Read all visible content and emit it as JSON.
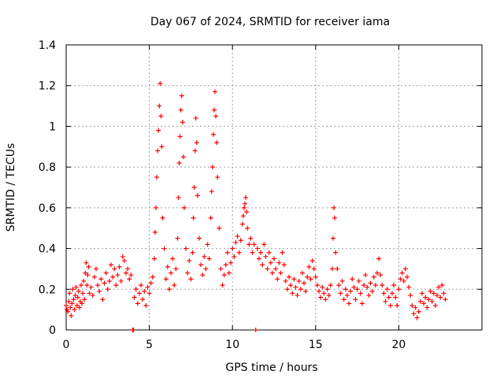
{
  "chart_data": {
    "type": "scatter",
    "title": "Day 067 of 2024, SRMTID for receiver iama",
    "xlabel": "GPS time / hours",
    "ylabel": "SRMTID / TECUs",
    "xlim": [
      0,
      25
    ],
    "ylim": [
      0,
      1.4
    ],
    "x_ticks": [
      0,
      5,
      10,
      15,
      20
    ],
    "y_ticks": [
      0,
      0.2,
      0.4,
      0.6,
      0.8,
      1,
      1.2,
      1.4
    ],
    "x_tick_labels": [
      "0",
      "5",
      "10",
      "15",
      "20"
    ],
    "y_tick_labels": [
      "0",
      "0.2",
      "0.4",
      "0.6",
      "0.8",
      "1",
      "1.2",
      "1.4"
    ],
    "grid": true,
    "marker": "+",
    "color": "#ff0000",
    "series": [
      {
        "name": "SRMTID",
        "points": [
          [
            0.0,
            0.12
          ],
          [
            0.05,
            0.1
          ],
          [
            0.1,
            0.09
          ],
          [
            0.15,
            0.14
          ],
          [
            0.2,
            0.18
          ],
          [
            0.25,
            0.11
          ],
          [
            0.3,
            0.07
          ],
          [
            0.35,
            0.13
          ],
          [
            0.4,
            0.2
          ],
          [
            0.45,
            0.15
          ],
          [
            0.5,
            0.1
          ],
          [
            0.55,
            0.17
          ],
          [
            0.6,
            0.21
          ],
          [
            0.65,
            0.12
          ],
          [
            0.7,
            0.16
          ],
          [
            0.75,
            0.19
          ],
          [
            0.8,
            0.11
          ],
          [
            0.85,
            0.14
          ],
          [
            0.9,
            0.22
          ],
          [
            0.95,
            0.13
          ],
          [
            1.0,
            0.18
          ],
          [
            1.05,
            0.24
          ],
          [
            1.1,
            0.15
          ],
          [
            1.15,
            0.28
          ],
          [
            1.2,
            0.33
          ],
          [
            1.25,
            0.22
          ],
          [
            1.3,
            0.27
          ],
          [
            1.35,
            0.31
          ],
          [
            1.4,
            0.18
          ],
          [
            1.5,
            0.21
          ],
          [
            1.6,
            0.17
          ],
          [
            1.7,
            0.26
          ],
          [
            1.8,
            0.3
          ],
          [
            1.9,
            0.22
          ],
          [
            2.0,
            0.19
          ],
          [
            2.1,
            0.25
          ],
          [
            2.2,
            0.15
          ],
          [
            2.3,
            0.23
          ],
          [
            2.4,
            0.28
          ],
          [
            2.5,
            0.2
          ],
          [
            2.6,
            0.24
          ],
          [
            2.7,
            0.32
          ],
          [
            2.8,
            0.26
          ],
          [
            2.9,
            0.3
          ],
          [
            3.0,
            0.22
          ],
          [
            3.1,
            0.27
          ],
          [
            3.2,
            0.31
          ],
          [
            3.3,
            0.24
          ],
          [
            3.4,
            0.36
          ],
          [
            3.5,
            0.34
          ],
          [
            3.6,
            0.28
          ],
          [
            3.7,
            0.3
          ],
          [
            3.8,
            0.25
          ],
          [
            3.9,
            0.27
          ],
          [
            4.0,
            0.0
          ],
          [
            4.05,
            0.0
          ],
          [
            4.1,
            0.16
          ],
          [
            4.2,
            0.2
          ],
          [
            4.3,
            0.13
          ],
          [
            4.4,
            0.18
          ],
          [
            4.5,
            0.22
          ],
          [
            4.6,
            0.15
          ],
          [
            4.7,
            0.19
          ],
          [
            4.8,
            0.12
          ],
          [
            4.9,
            0.21
          ],
          [
            5.0,
            0.18
          ],
          [
            5.1,
            0.23
          ],
          [
            5.2,
            0.26
          ],
          [
            5.3,
            0.35
          ],
          [
            5.35,
            0.48
          ],
          [
            5.4,
            0.6
          ],
          [
            5.45,
            0.75
          ],
          [
            5.5,
            0.88
          ],
          [
            5.55,
            0.98
          ],
          [
            5.6,
            1.1
          ],
          [
            5.65,
            1.21
          ],
          [
            5.7,
            1.05
          ],
          [
            5.75,
            0.9
          ],
          [
            5.8,
            0.55
          ],
          [
            5.9,
            0.4
          ],
          [
            6.0,
            0.25
          ],
          [
            6.1,
            0.31
          ],
          [
            6.2,
            0.2
          ],
          [
            6.3,
            0.28
          ],
          [
            6.4,
            0.35
          ],
          [
            6.5,
            0.22
          ],
          [
            6.6,
            0.3
          ],
          [
            6.7,
            0.45
          ],
          [
            6.75,
            0.65
          ],
          [
            6.8,
            0.82
          ],
          [
            6.85,
            0.95
          ],
          [
            6.9,
            1.08
          ],
          [
            6.95,
            1.15
          ],
          [
            7.0,
            1.02
          ],
          [
            7.05,
            0.85
          ],
          [
            7.1,
            0.6
          ],
          [
            7.2,
            0.4
          ],
          [
            7.3,
            0.28
          ],
          [
            7.4,
            0.34
          ],
          [
            7.5,
            0.25
          ],
          [
            7.6,
            0.38
          ],
          [
            7.65,
            0.55
          ],
          [
            7.7,
            0.7
          ],
          [
            7.75,
            0.88
          ],
          [
            7.8,
            1.04
          ],
          [
            7.85,
            0.92
          ],
          [
            7.9,
            0.66
          ],
          [
            8.0,
            0.45
          ],
          [
            8.1,
            0.32
          ],
          [
            8.2,
            0.27
          ],
          [
            8.3,
            0.36
          ],
          [
            8.4,
            0.3
          ],
          [
            8.5,
            0.42
          ],
          [
            8.6,
            0.35
          ],
          [
            8.7,
            0.55
          ],
          [
            8.75,
            0.68
          ],
          [
            8.8,
            0.8
          ],
          [
            8.85,
            0.96
          ],
          [
            8.9,
            1.08
          ],
          [
            8.95,
            1.17
          ],
          [
            9.0,
            1.05
          ],
          [
            9.05,
            0.92
          ],
          [
            9.1,
            0.75
          ],
          [
            9.2,
            0.5
          ],
          [
            9.3,
            0.3
          ],
          [
            9.4,
            0.22
          ],
          [
            9.5,
            0.27
          ],
          [
            9.6,
            0.32
          ],
          [
            9.7,
            0.38
          ],
          [
            9.8,
            0.28
          ],
          [
            9.9,
            0.33
          ],
          [
            10.0,
            0.4
          ],
          [
            10.1,
            0.36
          ],
          [
            10.2,
            0.43
          ],
          [
            10.3,
            0.46
          ],
          [
            10.4,
            0.38
          ],
          [
            10.5,
            0.44
          ],
          [
            10.6,
            0.52
          ],
          [
            10.65,
            0.56
          ],
          [
            10.7,
            0.6
          ],
          [
            10.75,
            0.62
          ],
          [
            10.8,
            0.65
          ],
          [
            10.85,
            0.58
          ],
          [
            10.9,
            0.5
          ],
          [
            11.0,
            0.42
          ],
          [
            11.1,
            0.45
          ],
          [
            11.2,
            0.38
          ],
          [
            11.3,
            0.42
          ],
          [
            11.4,
            0.0
          ],
          [
            11.5,
            0.4
          ],
          [
            11.6,
            0.35
          ],
          [
            11.7,
            0.38
          ],
          [
            11.8,
            0.32
          ],
          [
            11.9,
            0.42
          ],
          [
            12.0,
            0.36
          ],
          [
            12.1,
            0.3
          ],
          [
            12.2,
            0.38
          ],
          [
            12.3,
            0.33
          ],
          [
            12.4,
            0.28
          ],
          [
            12.5,
            0.35
          ],
          [
            12.6,
            0.3
          ],
          [
            12.7,
            0.25
          ],
          [
            12.8,
            0.33
          ],
          [
            12.9,
            0.28
          ],
          [
            13.0,
            0.38
          ],
          [
            13.1,
            0.32
          ],
          [
            13.2,
            0.24
          ],
          [
            13.3,
            0.2
          ],
          [
            13.4,
            0.26
          ],
          [
            13.5,
            0.22
          ],
          [
            13.6,
            0.18
          ],
          [
            13.7,
            0.25
          ],
          [
            13.8,
            0.21
          ],
          [
            13.9,
            0.17
          ],
          [
            14.0,
            0.24
          ],
          [
            14.1,
            0.2
          ],
          [
            14.2,
            0.28
          ],
          [
            14.3,
            0.23
          ],
          [
            14.4,
            0.19
          ],
          [
            14.5,
            0.26
          ],
          [
            14.6,
            0.31
          ],
          [
            14.7,
            0.25
          ],
          [
            14.8,
            0.34
          ],
          [
            14.9,
            0.3
          ],
          [
            15.0,
            0.26
          ],
          [
            15.1,
            0.22
          ],
          [
            15.2,
            0.19
          ],
          [
            15.3,
            0.16
          ],
          [
            15.4,
            0.21
          ],
          [
            15.5,
            0.18
          ],
          [
            15.6,
            0.15
          ],
          [
            15.7,
            0.2
          ],
          [
            15.8,
            0.17
          ],
          [
            15.9,
            0.22
          ],
          [
            16.0,
            0.3
          ],
          [
            16.05,
            0.45
          ],
          [
            16.1,
            0.6
          ],
          [
            16.15,
            0.55
          ],
          [
            16.2,
            0.38
          ],
          [
            16.3,
            0.3
          ],
          [
            16.4,
            0.22
          ],
          [
            16.5,
            0.18
          ],
          [
            16.6,
            0.24
          ],
          [
            16.7,
            0.15
          ],
          [
            16.8,
            0.2
          ],
          [
            16.9,
            0.17
          ],
          [
            17.0,
            0.13
          ],
          [
            17.1,
            0.19
          ],
          [
            17.2,
            0.25
          ],
          [
            17.3,
            0.21
          ],
          [
            17.4,
            0.15
          ],
          [
            17.5,
            0.2
          ],
          [
            17.6,
            0.24
          ],
          [
            17.7,
            0.18
          ],
          [
            17.8,
            0.13
          ],
          [
            17.9,
            0.22
          ],
          [
            18.0,
            0.27
          ],
          [
            18.1,
            0.21
          ],
          [
            18.2,
            0.17
          ],
          [
            18.3,
            0.23
          ],
          [
            18.4,
            0.19
          ],
          [
            18.5,
            0.26
          ],
          [
            18.6,
            0.22
          ],
          [
            18.7,
            0.28
          ],
          [
            18.8,
            0.35
          ],
          [
            18.9,
            0.27
          ],
          [
            19.0,
            0.22
          ],
          [
            19.1,
            0.18
          ],
          [
            19.2,
            0.14
          ],
          [
            19.3,
            0.2
          ],
          [
            19.4,
            0.16
          ],
          [
            19.5,
            0.12
          ],
          [
            19.6,
            0.18
          ],
          [
            19.7,
            0.22
          ],
          [
            19.8,
            0.16
          ],
          [
            19.9,
            0.12
          ],
          [
            20.0,
            0.2
          ],
          [
            20.1,
            0.25
          ],
          [
            20.2,
            0.28
          ],
          [
            20.3,
            0.24
          ],
          [
            20.4,
            0.3
          ],
          [
            20.5,
            0.26
          ],
          [
            20.6,
            0.21
          ],
          [
            20.7,
            0.17
          ],
          [
            20.8,
            0.12
          ],
          [
            20.9,
            0.08
          ],
          [
            21.0,
            0.11
          ],
          [
            21.1,
            0.06
          ],
          [
            21.2,
            0.09
          ],
          [
            21.3,
            0.14
          ],
          [
            21.4,
            0.18
          ],
          [
            21.5,
            0.13
          ],
          [
            21.6,
            0.16
          ],
          [
            21.7,
            0.11
          ],
          [
            21.8,
            0.15
          ],
          [
            21.9,
            0.19
          ],
          [
            22.0,
            0.14
          ],
          [
            22.1,
            0.18
          ],
          [
            22.2,
            0.12
          ],
          [
            22.3,
            0.17
          ],
          [
            22.4,
            0.21
          ],
          [
            22.5,
            0.16
          ],
          [
            22.6,
            0.22
          ],
          [
            22.7,
            0.18
          ],
          [
            22.8,
            0.15
          ]
        ]
      }
    ]
  }
}
